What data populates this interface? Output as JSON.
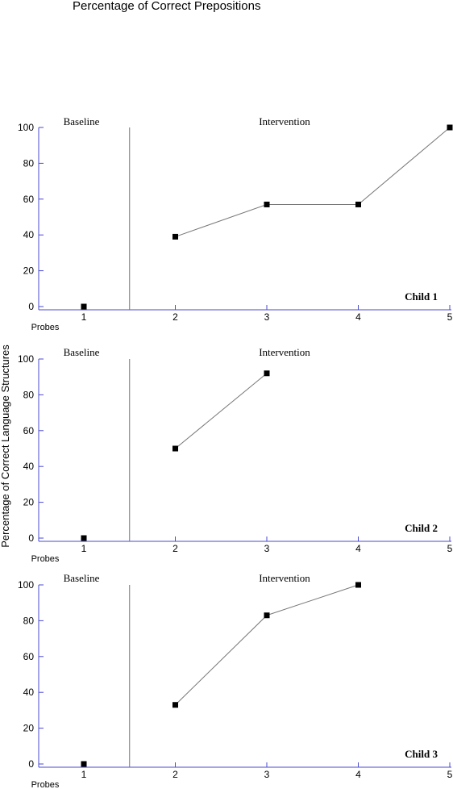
{
  "chart_data": {
    "type": "line",
    "title": "Percentage of Correct Prepositions",
    "ylabel": "Percentage of Correct Language Structures",
    "xlabel": "Probes",
    "x": [
      1,
      2,
      3,
      4,
      5
    ],
    "ylim": [
      0,
      100
    ],
    "yticks": [
      0,
      20,
      40,
      60,
      80,
      100
    ],
    "phase_labels": [
      "Baseline",
      "Intervention"
    ],
    "phase_change_after": 1,
    "grid": false,
    "panels": [
      {
        "name": "Child 1",
        "values": [
          0,
          39,
          57,
          57,
          100
        ]
      },
      {
        "name": "Child 2",
        "values": [
          0,
          50,
          92,
          null,
          null
        ]
      },
      {
        "name": "Child 3",
        "values": [
          0,
          33,
          83,
          100,
          null
        ]
      }
    ]
  },
  "colors": {
    "axis": "#4a4ad0",
    "phase_line": "#777777",
    "series_line": "#777777",
    "marker": "#000000"
  }
}
